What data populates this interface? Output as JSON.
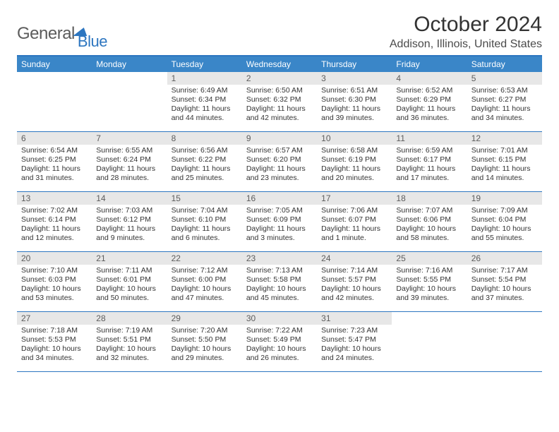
{
  "logo": {
    "word1": "General",
    "word2": "Blue"
  },
  "header": {
    "title": "October 2024",
    "location": "Addison, Illinois, United States"
  },
  "colors": {
    "accent": "#2d76c0",
    "header_bg": "#3a86c8",
    "daynum_bg": "#e7e7e7",
    "text": "#333333"
  },
  "weekdays": [
    "Sunday",
    "Monday",
    "Tuesday",
    "Wednesday",
    "Thursday",
    "Friday",
    "Saturday"
  ],
  "weeks": [
    [
      {
        "empty": true
      },
      {
        "empty": true
      },
      {
        "n": "1",
        "sr": "Sunrise: 6:49 AM",
        "ss": "Sunset: 6:34 PM",
        "dl1": "Daylight: 11 hours",
        "dl2": "and 44 minutes."
      },
      {
        "n": "2",
        "sr": "Sunrise: 6:50 AM",
        "ss": "Sunset: 6:32 PM",
        "dl1": "Daylight: 11 hours",
        "dl2": "and 42 minutes."
      },
      {
        "n": "3",
        "sr": "Sunrise: 6:51 AM",
        "ss": "Sunset: 6:30 PM",
        "dl1": "Daylight: 11 hours",
        "dl2": "and 39 minutes."
      },
      {
        "n": "4",
        "sr": "Sunrise: 6:52 AM",
        "ss": "Sunset: 6:29 PM",
        "dl1": "Daylight: 11 hours",
        "dl2": "and 36 minutes."
      },
      {
        "n": "5",
        "sr": "Sunrise: 6:53 AM",
        "ss": "Sunset: 6:27 PM",
        "dl1": "Daylight: 11 hours",
        "dl2": "and 34 minutes."
      }
    ],
    [
      {
        "n": "6",
        "sr": "Sunrise: 6:54 AM",
        "ss": "Sunset: 6:25 PM",
        "dl1": "Daylight: 11 hours",
        "dl2": "and 31 minutes."
      },
      {
        "n": "7",
        "sr": "Sunrise: 6:55 AM",
        "ss": "Sunset: 6:24 PM",
        "dl1": "Daylight: 11 hours",
        "dl2": "and 28 minutes."
      },
      {
        "n": "8",
        "sr": "Sunrise: 6:56 AM",
        "ss": "Sunset: 6:22 PM",
        "dl1": "Daylight: 11 hours",
        "dl2": "and 25 minutes."
      },
      {
        "n": "9",
        "sr": "Sunrise: 6:57 AM",
        "ss": "Sunset: 6:20 PM",
        "dl1": "Daylight: 11 hours",
        "dl2": "and 23 minutes."
      },
      {
        "n": "10",
        "sr": "Sunrise: 6:58 AM",
        "ss": "Sunset: 6:19 PM",
        "dl1": "Daylight: 11 hours",
        "dl2": "and 20 minutes."
      },
      {
        "n": "11",
        "sr": "Sunrise: 6:59 AM",
        "ss": "Sunset: 6:17 PM",
        "dl1": "Daylight: 11 hours",
        "dl2": "and 17 minutes."
      },
      {
        "n": "12",
        "sr": "Sunrise: 7:01 AM",
        "ss": "Sunset: 6:15 PM",
        "dl1": "Daylight: 11 hours",
        "dl2": "and 14 minutes."
      }
    ],
    [
      {
        "n": "13",
        "sr": "Sunrise: 7:02 AM",
        "ss": "Sunset: 6:14 PM",
        "dl1": "Daylight: 11 hours",
        "dl2": "and 12 minutes."
      },
      {
        "n": "14",
        "sr": "Sunrise: 7:03 AM",
        "ss": "Sunset: 6:12 PM",
        "dl1": "Daylight: 11 hours",
        "dl2": "and 9 minutes."
      },
      {
        "n": "15",
        "sr": "Sunrise: 7:04 AM",
        "ss": "Sunset: 6:10 PM",
        "dl1": "Daylight: 11 hours",
        "dl2": "and 6 minutes."
      },
      {
        "n": "16",
        "sr": "Sunrise: 7:05 AM",
        "ss": "Sunset: 6:09 PM",
        "dl1": "Daylight: 11 hours",
        "dl2": "and 3 minutes."
      },
      {
        "n": "17",
        "sr": "Sunrise: 7:06 AM",
        "ss": "Sunset: 6:07 PM",
        "dl1": "Daylight: 11 hours",
        "dl2": "and 1 minute."
      },
      {
        "n": "18",
        "sr": "Sunrise: 7:07 AM",
        "ss": "Sunset: 6:06 PM",
        "dl1": "Daylight: 10 hours",
        "dl2": "and 58 minutes."
      },
      {
        "n": "19",
        "sr": "Sunrise: 7:09 AM",
        "ss": "Sunset: 6:04 PM",
        "dl1": "Daylight: 10 hours",
        "dl2": "and 55 minutes."
      }
    ],
    [
      {
        "n": "20",
        "sr": "Sunrise: 7:10 AM",
        "ss": "Sunset: 6:03 PM",
        "dl1": "Daylight: 10 hours",
        "dl2": "and 53 minutes."
      },
      {
        "n": "21",
        "sr": "Sunrise: 7:11 AM",
        "ss": "Sunset: 6:01 PM",
        "dl1": "Daylight: 10 hours",
        "dl2": "and 50 minutes."
      },
      {
        "n": "22",
        "sr": "Sunrise: 7:12 AM",
        "ss": "Sunset: 6:00 PM",
        "dl1": "Daylight: 10 hours",
        "dl2": "and 47 minutes."
      },
      {
        "n": "23",
        "sr": "Sunrise: 7:13 AM",
        "ss": "Sunset: 5:58 PM",
        "dl1": "Daylight: 10 hours",
        "dl2": "and 45 minutes."
      },
      {
        "n": "24",
        "sr": "Sunrise: 7:14 AM",
        "ss": "Sunset: 5:57 PM",
        "dl1": "Daylight: 10 hours",
        "dl2": "and 42 minutes."
      },
      {
        "n": "25",
        "sr": "Sunrise: 7:16 AM",
        "ss": "Sunset: 5:55 PM",
        "dl1": "Daylight: 10 hours",
        "dl2": "and 39 minutes."
      },
      {
        "n": "26",
        "sr": "Sunrise: 7:17 AM",
        "ss": "Sunset: 5:54 PM",
        "dl1": "Daylight: 10 hours",
        "dl2": "and 37 minutes."
      }
    ],
    [
      {
        "n": "27",
        "sr": "Sunrise: 7:18 AM",
        "ss": "Sunset: 5:53 PM",
        "dl1": "Daylight: 10 hours",
        "dl2": "and 34 minutes."
      },
      {
        "n": "28",
        "sr": "Sunrise: 7:19 AM",
        "ss": "Sunset: 5:51 PM",
        "dl1": "Daylight: 10 hours",
        "dl2": "and 32 minutes."
      },
      {
        "n": "29",
        "sr": "Sunrise: 7:20 AM",
        "ss": "Sunset: 5:50 PM",
        "dl1": "Daylight: 10 hours",
        "dl2": "and 29 minutes."
      },
      {
        "n": "30",
        "sr": "Sunrise: 7:22 AM",
        "ss": "Sunset: 5:49 PM",
        "dl1": "Daylight: 10 hours",
        "dl2": "and 26 minutes."
      },
      {
        "n": "31",
        "sr": "Sunrise: 7:23 AM",
        "ss": "Sunset: 5:47 PM",
        "dl1": "Daylight: 10 hours",
        "dl2": "and 24 minutes."
      },
      {
        "empty": true
      },
      {
        "empty": true
      }
    ]
  ]
}
